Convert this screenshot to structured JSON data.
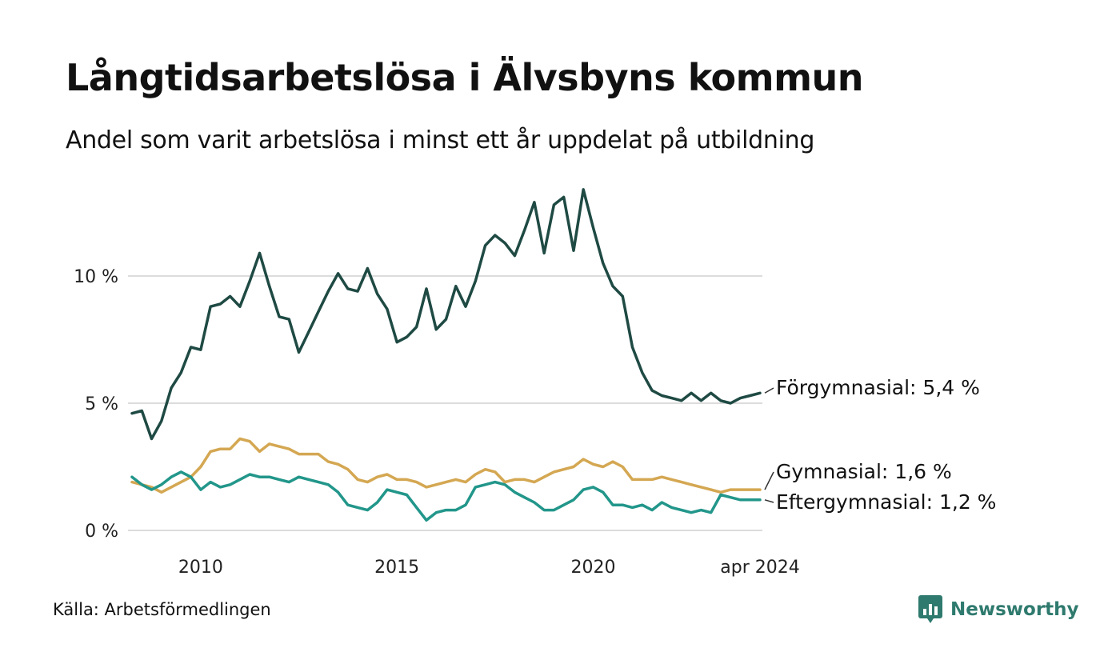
{
  "header": {
    "title": "Långtidsarbetslösa i Älvsbyns kommun",
    "subtitle": "Andel som varit arbetslösa i minst ett år uppdelat på utbildning"
  },
  "footer": {
    "source": "Källa: Arbetsförmedlingen",
    "brand": "Newsworthy",
    "brand_color": "#2f7a6e"
  },
  "chart_data": {
    "type": "line",
    "title": "Långtidsarbetslösa i Älvsbyns kommun",
    "subtitle": "Andel som varit arbetslösa i minst ett år uppdelat på utbildning",
    "xlabel": "",
    "ylabel": "",
    "ylim": [
      0,
      13
    ],
    "xlim": [
      2008.25,
      2024.25
    ],
    "y_ticks": [
      0,
      5,
      10
    ],
    "y_tick_labels": [
      "0 %",
      "5 %",
      "10 %"
    ],
    "x_ticks": [
      2010,
      2015,
      2020,
      2024.25
    ],
    "x_tick_labels": [
      "2010",
      "2015",
      "2020",
      "apr 2024"
    ],
    "grid": "horizontal",
    "legend": "direct labels at line ends (right)",
    "series": [
      {
        "name": "Förgymnasial",
        "label": "Förgymnasial: 5,4 %",
        "color": "#1f4a44",
        "x": [
          2008.25,
          2008.5,
          2008.75,
          2009,
          2009.25,
          2009.5,
          2009.75,
          2010,
          2010.25,
          2010.5,
          2010.75,
          2011,
          2011.25,
          2011.5,
          2011.75,
          2012,
          2012.25,
          2012.5,
          2012.75,
          2013,
          2013.25,
          2013.5,
          2013.75,
          2014,
          2014.25,
          2014.5,
          2014.75,
          2015,
          2015.25,
          2015.5,
          2015.75,
          2016,
          2016.25,
          2016.5,
          2016.75,
          2017,
          2017.25,
          2017.5,
          2017.75,
          2018,
          2018.25,
          2018.5,
          2018.75,
          2019,
          2019.25,
          2019.5,
          2019.75,
          2020,
          2020.25,
          2020.5,
          2020.75,
          2021,
          2021.25,
          2021.5,
          2021.75,
          2022,
          2022.25,
          2022.5,
          2022.75,
          2023,
          2023.25,
          2023.5,
          2023.75,
          2024,
          2024.25
        ],
        "values": [
          4.6,
          4.7,
          3.6,
          4.3,
          5.6,
          6.2,
          7.2,
          7.1,
          8.8,
          8.9,
          9.2,
          8.8,
          9.8,
          10.9,
          9.6,
          8.4,
          8.3,
          7.0,
          7.8,
          8.6,
          9.4,
          10.1,
          9.5,
          9.4,
          10.3,
          9.3,
          8.7,
          7.4,
          7.6,
          8.0,
          9.5,
          7.9,
          8.3,
          9.6,
          8.8,
          9.8,
          11.2,
          11.6,
          11.3,
          10.8,
          11.8,
          12.9,
          10.9,
          12.8,
          13.1,
          11.0,
          13.4,
          11.9,
          10.5,
          9.6,
          9.2,
          7.2,
          6.2,
          5.5,
          5.3,
          5.2,
          5.1,
          5.4,
          5.1,
          5.4,
          5.1,
          5.0,
          5.2,
          5.3,
          5.4
        ]
      },
      {
        "name": "Gymnasial",
        "label": "Gymnasial: 1,6 %",
        "color": "#d4a752",
        "x": [
          2008.25,
          2008.5,
          2008.75,
          2009,
          2009.25,
          2009.5,
          2009.75,
          2010,
          2010.25,
          2010.5,
          2010.75,
          2011,
          2011.25,
          2011.5,
          2011.75,
          2012,
          2012.25,
          2012.5,
          2012.75,
          2013,
          2013.25,
          2013.5,
          2013.75,
          2014,
          2014.25,
          2014.5,
          2014.75,
          2015,
          2015.25,
          2015.5,
          2015.75,
          2016,
          2016.25,
          2016.5,
          2016.75,
          2017,
          2017.25,
          2017.5,
          2017.75,
          2018,
          2018.25,
          2018.5,
          2018.75,
          2019,
          2019.25,
          2019.5,
          2019.75,
          2020,
          2020.25,
          2020.5,
          2020.75,
          2021,
          2021.25,
          2021.5,
          2021.75,
          2022,
          2022.25,
          2022.5,
          2022.75,
          2023,
          2023.25,
          2023.5,
          2023.75,
          2024,
          2024.25
        ],
        "values": [
          1.9,
          1.8,
          1.7,
          1.5,
          1.7,
          1.9,
          2.1,
          2.5,
          3.1,
          3.2,
          3.2,
          3.6,
          3.5,
          3.1,
          3.4,
          3.3,
          3.2,
          3.0,
          3.0,
          3.0,
          2.7,
          2.6,
          2.4,
          2.0,
          1.9,
          2.1,
          2.2,
          2.0,
          2.0,
          1.9,
          1.7,
          1.8,
          1.9,
          2.0,
          1.9,
          2.2,
          2.4,
          2.3,
          1.9,
          2.0,
          2.0,
          1.9,
          2.1,
          2.3,
          2.4,
          2.5,
          2.8,
          2.6,
          2.5,
          2.7,
          2.5,
          2.0,
          2.0,
          2.0,
          2.1,
          2.0,
          1.9,
          1.8,
          1.7,
          1.6,
          1.5,
          1.6,
          1.6,
          1.6,
          1.6
        ]
      },
      {
        "name": "Eftergymnasial",
        "label": "Eftergymnasial: 1,2 %",
        "color": "#22968a",
        "x": [
          2008.25,
          2008.5,
          2008.75,
          2009,
          2009.25,
          2009.5,
          2009.75,
          2010,
          2010.25,
          2010.5,
          2010.75,
          2011,
          2011.25,
          2011.5,
          2011.75,
          2012,
          2012.25,
          2012.5,
          2012.75,
          2013,
          2013.25,
          2013.5,
          2013.75,
          2014,
          2014.25,
          2014.5,
          2014.75,
          2015,
          2015.25,
          2015.5,
          2015.75,
          2016,
          2016.25,
          2016.5,
          2016.75,
          2017,
          2017.25,
          2017.5,
          2017.75,
          2018,
          2018.25,
          2018.5,
          2018.75,
          2019,
          2019.25,
          2019.5,
          2019.75,
          2020,
          2020.25,
          2020.5,
          2020.75,
          2021,
          2021.25,
          2021.5,
          2021.75,
          2022,
          2022.25,
          2022.5,
          2022.75,
          2023,
          2023.25,
          2023.5,
          2023.75,
          2024,
          2024.25
        ],
        "values": [
          2.1,
          1.8,
          1.6,
          1.8,
          2.1,
          2.3,
          2.1,
          1.6,
          1.9,
          1.7,
          1.8,
          2.0,
          2.2,
          2.1,
          2.1,
          2.0,
          1.9,
          2.1,
          2.0,
          1.9,
          1.8,
          1.5,
          1.0,
          0.9,
          0.8,
          1.1,
          1.6,
          1.5,
          1.4,
          0.9,
          0.4,
          0.7,
          0.8,
          0.8,
          1.0,
          1.7,
          1.8,
          1.9,
          1.8,
          1.5,
          1.3,
          1.1,
          0.8,
          0.8,
          1.0,
          1.2,
          1.6,
          1.7,
          1.5,
          1.0,
          1.0,
          0.9,
          1.0,
          0.8,
          1.1,
          0.9,
          0.8,
          0.7,
          0.8,
          0.7,
          1.4,
          1.3,
          1.2,
          1.2,
          1.2
        ]
      }
    ]
  }
}
